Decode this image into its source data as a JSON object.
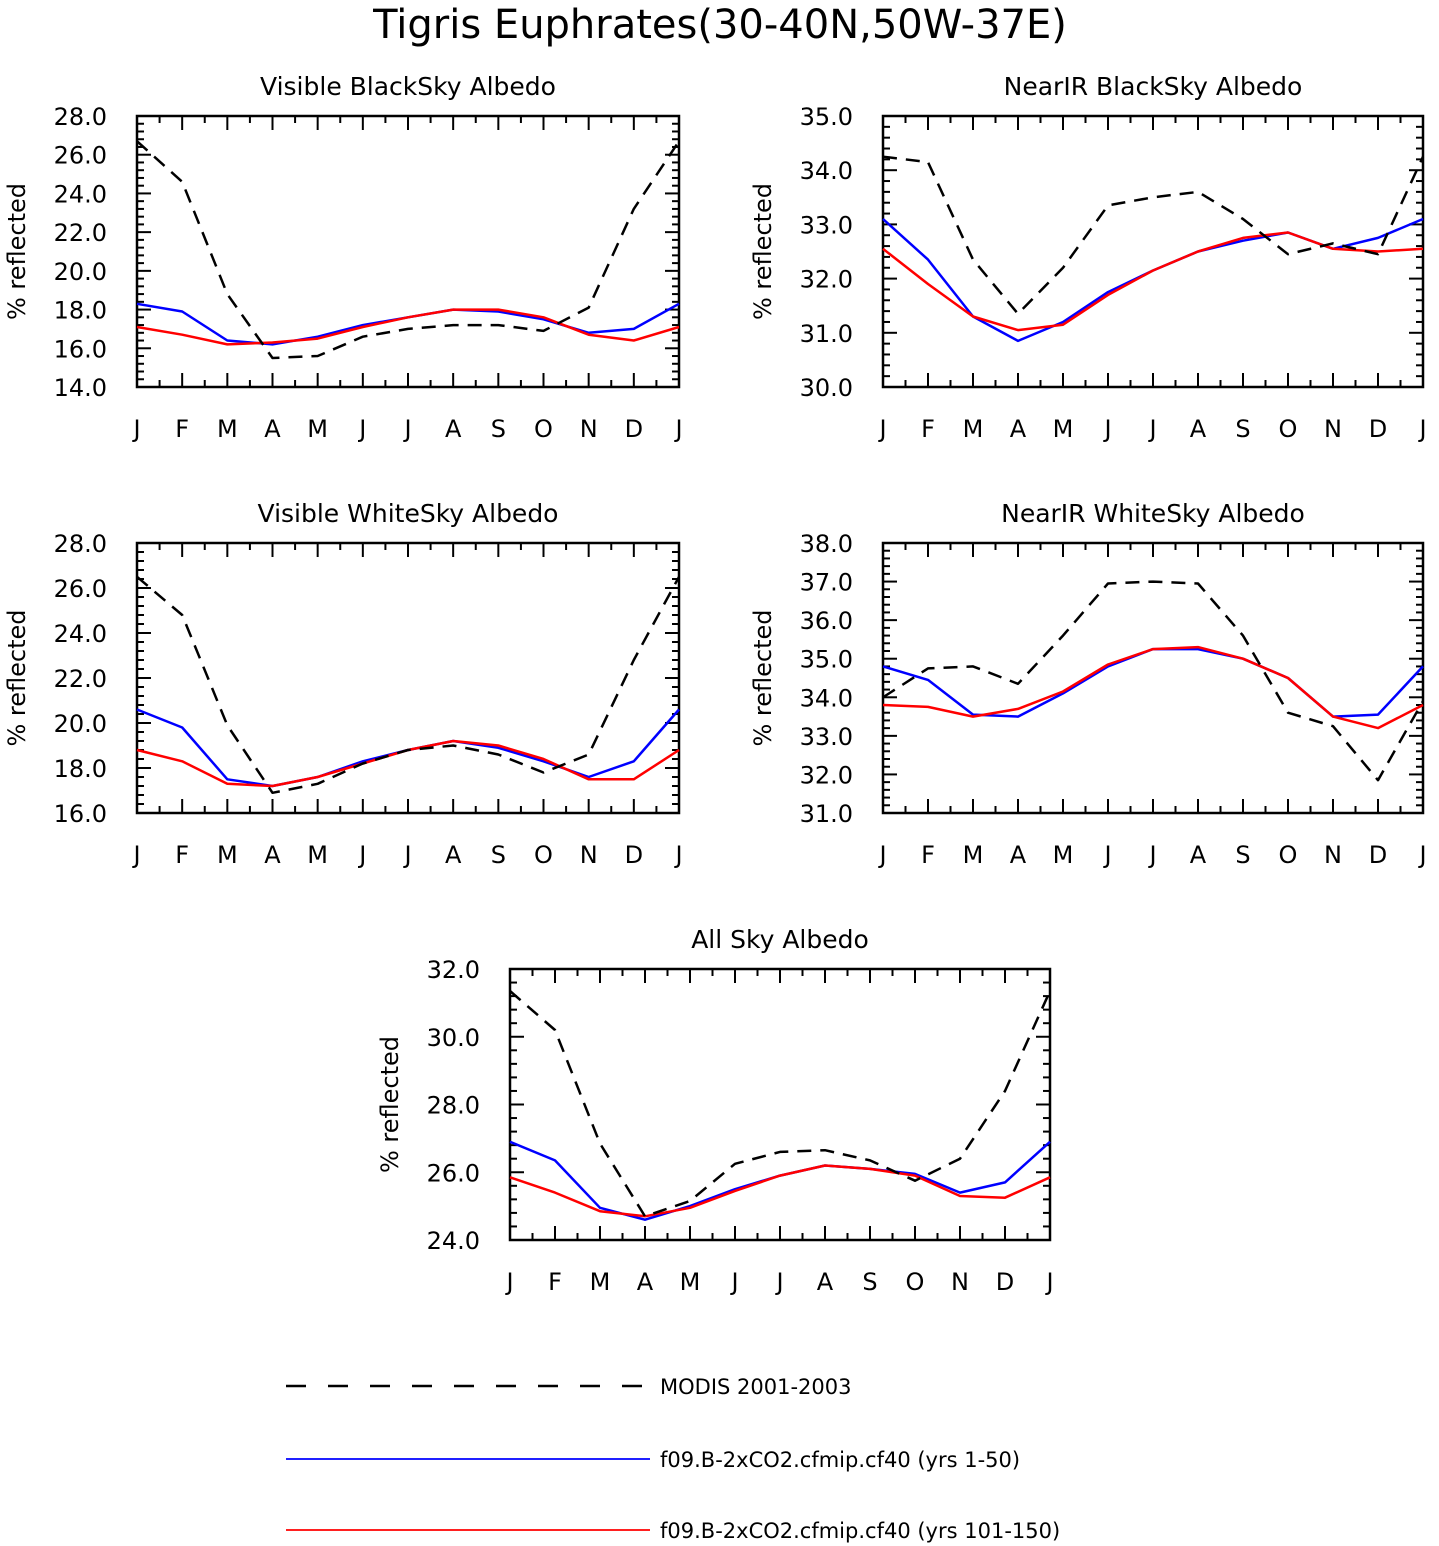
{
  "title": "Tigris Euphrates(30-40N,50W-37E)",
  "month_labels": [
    "J",
    "F",
    "M",
    "A",
    "M",
    "J",
    "J",
    "A",
    "S",
    "O",
    "N",
    "D",
    "J"
  ],
  "series_styles": [
    {
      "key": "modis",
      "color": "#000000",
      "dashed": true
    },
    {
      "key": "cf40_1_50",
      "color": "#0000ff",
      "dashed": false
    },
    {
      "key": "cf40_101_150",
      "color": "#ff0000",
      "dashed": false
    }
  ],
  "legend": [
    {
      "label": "MODIS 2001-2003"
    },
    {
      "label": "f09.B-2xCO2.cfmip.cf40 (yrs 1-50)"
    },
    {
      "label": "f09.B-2xCO2.cfmip.cf40 (yrs 101-150)"
    }
  ],
  "chart_data": [
    {
      "type": "line",
      "title": "Visible BlackSky Albedo",
      "ylabel": "% reflected",
      "ylim": [
        14.0,
        28.0
      ],
      "yticks": [
        "14.0",
        "16.0",
        "18.0",
        "20.0",
        "22.0",
        "24.0",
        "26.0",
        "28.0"
      ],
      "x": [
        "J",
        "F",
        "M",
        "A",
        "M",
        "J",
        "J",
        "A",
        "S",
        "O",
        "N",
        "D",
        "J"
      ],
      "series": [
        {
          "name": "MODIS 2001-2003",
          "values": [
            26.7,
            24.6,
            18.8,
            15.5,
            15.6,
            16.6,
            17.0,
            17.2,
            17.2,
            16.9,
            18.1,
            23.2,
            26.7
          ]
        },
        {
          "name": "f09.B-2xCO2.cfmip.cf40 (yrs 1-50)",
          "values": [
            18.3,
            17.9,
            16.4,
            16.2,
            16.6,
            17.2,
            17.6,
            18.0,
            17.9,
            17.5,
            16.8,
            17.0,
            18.3
          ]
        },
        {
          "name": "f09.B-2xCO2.cfmip.cf40 (yrs 101-150)",
          "values": [
            17.1,
            16.7,
            16.2,
            16.3,
            16.5,
            17.1,
            17.6,
            18.0,
            18.0,
            17.6,
            16.7,
            16.4,
            17.1
          ]
        }
      ]
    },
    {
      "type": "line",
      "title": "NearIR BlackSky Albedo",
      "ylabel": "% reflected",
      "ylim": [
        30.0,
        35.0
      ],
      "yticks": [
        "30.0",
        "31.0",
        "32.0",
        "33.0",
        "34.0",
        "35.0"
      ],
      "x": [
        "J",
        "F",
        "M",
        "A",
        "M",
        "J",
        "J",
        "A",
        "S",
        "O",
        "N",
        "D",
        "J"
      ],
      "series": [
        {
          "name": "MODIS 2001-2003",
          "values": [
            34.25,
            34.15,
            32.35,
            31.35,
            32.2,
            33.35,
            33.5,
            33.6,
            33.1,
            32.45,
            32.65,
            32.45,
            34.25
          ]
        },
        {
          "name": "f09.B-2xCO2.cfmip.cf40 (yrs 1-50)",
          "values": [
            33.1,
            32.35,
            31.3,
            30.85,
            31.2,
            31.75,
            32.15,
            32.5,
            32.7,
            32.85,
            32.55,
            32.75,
            33.1
          ]
        },
        {
          "name": "f09.B-2xCO2.cfmip.cf40 (yrs 101-150)",
          "values": [
            32.55,
            31.9,
            31.3,
            31.05,
            31.15,
            31.7,
            32.15,
            32.5,
            32.75,
            32.85,
            32.55,
            32.5,
            32.55
          ]
        }
      ]
    },
    {
      "type": "line",
      "title": "Visible WhiteSky Albedo",
      "ylabel": "% reflected",
      "ylim": [
        16.0,
        28.0
      ],
      "yticks": [
        "16.0",
        "18.0",
        "20.0",
        "22.0",
        "24.0",
        "26.0",
        "28.0"
      ],
      "x": [
        "J",
        "F",
        "M",
        "A",
        "M",
        "J",
        "J",
        "A",
        "S",
        "O",
        "N",
        "D",
        "J"
      ],
      "series": [
        {
          "name": "MODIS 2001-2003",
          "values": [
            26.5,
            24.8,
            19.9,
            16.9,
            17.3,
            18.2,
            18.8,
            19.0,
            18.6,
            17.8,
            18.6,
            22.8,
            26.5
          ]
        },
        {
          "name": "f09.B-2xCO2.cfmip.cf40 (yrs 1-50)",
          "values": [
            20.6,
            19.8,
            17.5,
            17.2,
            17.6,
            18.3,
            18.8,
            19.2,
            18.9,
            18.3,
            17.6,
            18.3,
            20.6
          ]
        },
        {
          "name": "f09.B-2xCO2.cfmip.cf40 (yrs 101-150)",
          "values": [
            18.8,
            18.3,
            17.3,
            17.2,
            17.6,
            18.2,
            18.8,
            19.2,
            19.0,
            18.4,
            17.5,
            17.5,
            18.8
          ]
        }
      ]
    },
    {
      "type": "line",
      "title": "NearIR WhiteSky Albedo",
      "ylabel": "% reflected",
      "ylim": [
        31.0,
        38.0
      ],
      "yticks": [
        "31.0",
        "32.0",
        "33.0",
        "34.0",
        "35.0",
        "36.0",
        "37.0",
        "38.0"
      ],
      "x": [
        "J",
        "F",
        "M",
        "A",
        "M",
        "J",
        "J",
        "A",
        "S",
        "O",
        "N",
        "D",
        "J"
      ],
      "series": [
        {
          "name": "MODIS 2001-2003",
          "values": [
            34.0,
            34.75,
            34.8,
            34.35,
            35.6,
            36.95,
            37.0,
            36.95,
            35.6,
            33.6,
            33.25,
            31.85,
            33.9
          ]
        },
        {
          "name": "f09.B-2xCO2.cfmip.cf40 (yrs 1-50)",
          "values": [
            34.8,
            34.45,
            33.55,
            33.5,
            34.1,
            34.8,
            35.25,
            35.25,
            35.0,
            34.5,
            33.5,
            33.55,
            34.8
          ]
        },
        {
          "name": "f09.B-2xCO2.cfmip.cf40 (yrs 101-150)",
          "values": [
            33.8,
            33.75,
            33.5,
            33.7,
            34.15,
            34.85,
            35.25,
            35.3,
            35.0,
            34.5,
            33.5,
            33.2,
            33.8
          ]
        }
      ]
    },
    {
      "type": "line",
      "title": "All Sky Albedo",
      "ylabel": "% reflected",
      "ylim": [
        24.0,
        32.0
      ],
      "yticks": [
        "24.0",
        "26.0",
        "28.0",
        "30.0",
        "32.0"
      ],
      "x": [
        "J",
        "F",
        "M",
        "A",
        "M",
        "J",
        "J",
        "A",
        "S",
        "O",
        "N",
        "D",
        "J"
      ],
      "series": [
        {
          "name": "MODIS 2001-2003",
          "values": [
            31.35,
            30.2,
            26.85,
            24.7,
            25.15,
            26.25,
            26.6,
            26.65,
            26.35,
            25.75,
            26.4,
            28.4,
            31.35
          ]
        },
        {
          "name": "f09.B-2xCO2.cfmip.cf40 (yrs 1-50)",
          "values": [
            26.9,
            26.35,
            24.95,
            24.6,
            25.0,
            25.5,
            25.9,
            26.2,
            26.1,
            25.95,
            25.4,
            25.7,
            26.9
          ]
        },
        {
          "name": "f09.B-2xCO2.cfmip.cf40 (yrs 101-150)",
          "values": [
            25.85,
            25.4,
            24.85,
            24.7,
            24.95,
            25.45,
            25.9,
            26.2,
            26.1,
            25.9,
            25.3,
            25.25,
            25.85
          ]
        }
      ]
    }
  ]
}
